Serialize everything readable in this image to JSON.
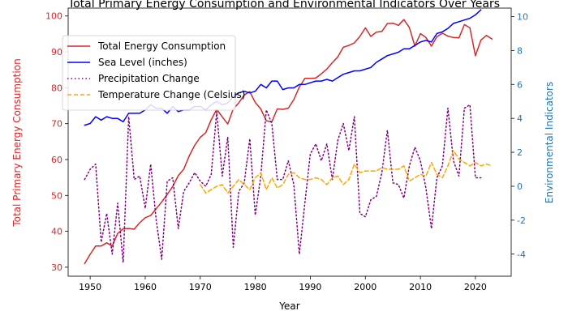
{
  "chart_data": {
    "type": "line",
    "title": "Total Primary Energy Consumption and Environmental Indicators Over Years",
    "xlabel": "Year",
    "ylabel_left": "Total Primary Energy Consumption",
    "ylabel_right": "Environmental Indicators",
    "xlim": [
      1946,
      2026.5
    ],
    "ylim_left": [
      27.5,
      102.2
    ],
    "ylim_right": [
      -5.3,
      10.5
    ],
    "x_ticks": [
      1950,
      1960,
      1970,
      1980,
      1990,
      2000,
      2010,
      2020
    ],
    "y_left_ticks": [
      30,
      40,
      50,
      60,
      70,
      80,
      90,
      100
    ],
    "y_right_ticks": [
      -4,
      -2,
      0,
      2,
      4,
      6,
      8,
      10
    ],
    "legend_position": "upper-left",
    "grid": false,
    "colors": {
      "left_axis": "#d62728",
      "right_axis": "#1f77b4"
    },
    "series": [
      {
        "name": "Total Energy Consumption",
        "axis": "left",
        "color": "#d62728",
        "style": "solid",
        "x": [
          1949,
          1950,
          1951,
          1952,
          1953,
          1954,
          1955,
          1956,
          1957,
          1958,
          1959,
          1960,
          1961,
          1962,
          1963,
          1964,
          1965,
          1966,
          1967,
          1968,
          1969,
          1970,
          1971,
          1972,
          1973,
          1974,
          1975,
          1976,
          1977,
          1978,
          1979,
          1980,
          1981,
          1982,
          1983,
          1984,
          1985,
          1986,
          1987,
          1988,
          1989,
          1990,
          1991,
          1992,
          1993,
          1994,
          1995,
          1996,
          1997,
          1998,
          1999,
          2000,
          2001,
          2002,
          2003,
          2004,
          2005,
          2006,
          2007,
          2008,
          2009,
          2010,
          2011,
          2012,
          2013,
          2014,
          2015,
          2016,
          2017,
          2018,
          2019,
          2020,
          2021,
          2022,
          2023
        ],
        "values": [
          31.0,
          33.6,
          35.9,
          35.9,
          36.8,
          35.9,
          39.4,
          40.7,
          40.8,
          40.6,
          42.4,
          43.8,
          44.4,
          46.3,
          48.2,
          50.3,
          52.5,
          55.5,
          57.3,
          61.0,
          64.0,
          66.2,
          67.5,
          71.1,
          74.0,
          71.9,
          69.9,
          74.1,
          75.8,
          78.0,
          78.9,
          75.9,
          74.1,
          70.8,
          70.5,
          74.1,
          74.0,
          74.3,
          76.7,
          80.2,
          82.6,
          82.6,
          82.7,
          83.9,
          85.2,
          87.0,
          88.6,
          91.3,
          91.8,
          92.5,
          94.3,
          96.7,
          94.3,
          95.5,
          95.7,
          97.9,
          98.0,
          97.4,
          99.0,
          96.8,
          91.6,
          95.1,
          94.0,
          91.6,
          94.2,
          95.2,
          94.4,
          94.0,
          93.9,
          97.6,
          96.7,
          88.9,
          93.3,
          94.6,
          93.6
        ]
      },
      {
        "name": "Sea Level (inches)",
        "axis": "right",
        "color": "#0000ff",
        "style": "solid",
        "x": [
          1949,
          1950,
          1951,
          1952,
          1953,
          1954,
          1955,
          1956,
          1957,
          1958,
          1959,
          1960,
          1961,
          1962,
          1963,
          1964,
          1965,
          1966,
          1967,
          1968,
          1969,
          1970,
          1971,
          1972,
          1973,
          1974,
          1975,
          1976,
          1977,
          1978,
          1979,
          1980,
          1981,
          1982,
          1983,
          1984,
          1985,
          1986,
          1987,
          1988,
          1989,
          1990,
          1991,
          1992,
          1993,
          1994,
          1995,
          1996,
          1997,
          1998,
          1999,
          2000,
          2001,
          2002,
          2003,
          2004,
          2005,
          2006,
          2007,
          2008,
          2009,
          2010,
          2011,
          2012,
          2013,
          2014,
          2015,
          2016,
          2017,
          2018,
          2019,
          2020,
          2021
        ],
        "values": [
          3.6,
          3.7,
          4.1,
          3.9,
          4.1,
          4.0,
          4.0,
          3.8,
          4.3,
          4.3,
          4.3,
          4.5,
          4.8,
          4.6,
          4.6,
          4.3,
          4.7,
          4.4,
          4.5,
          4.5,
          4.7,
          4.7,
          4.5,
          4.8,
          5.0,
          4.8,
          4.9,
          5.3,
          5.5,
          5.6,
          5.5,
          5.6,
          6.0,
          5.8,
          6.2,
          6.2,
          5.7,
          5.8,
          5.8,
          6.0,
          6.0,
          6.1,
          6.2,
          6.2,
          6.3,
          6.2,
          6.4,
          6.6,
          6.7,
          6.8,
          6.8,
          6.9,
          7.0,
          7.3,
          7.5,
          7.7,
          7.8,
          7.9,
          8.1,
          8.1,
          8.3,
          8.5,
          8.6,
          8.5,
          9.0,
          9.1,
          9.3,
          9.6,
          9.7,
          9.8,
          9.9,
          10.1,
          10.4
        ]
      },
      {
        "name": "Precipitation Change",
        "axis": "right",
        "color": "#800080",
        "style": "dotted",
        "x": [
          1949,
          1950,
          1951,
          1952,
          1953,
          1954,
          1955,
          1956,
          1957,
          1958,
          1959,
          1960,
          1961,
          1962,
          1963,
          1964,
          1965,
          1966,
          1967,
          1968,
          1969,
          1970,
          1971,
          1972,
          1973,
          1974,
          1975,
          1976,
          1977,
          1978,
          1979,
          1980,
          1981,
          1982,
          1983,
          1984,
          1985,
          1986,
          1987,
          1988,
          1989,
          1990,
          1991,
          1992,
          1993,
          1994,
          1995,
          1996,
          1997,
          1998,
          1999,
          2000,
          2001,
          2002,
          2003,
          2004,
          2005,
          2006,
          2007,
          2008,
          2009,
          2010,
          2011,
          2012,
          2013,
          2014,
          2015,
          2016,
          2017,
          2018,
          2019,
          2020,
          2021
        ],
        "values": [
          0.4,
          1.0,
          1.3,
          -3.3,
          -1.6,
          -4.0,
          -1.0,
          -4.5,
          4.1,
          0.4,
          0.6,
          -1.3,
          1.3,
          -2.0,
          -4.3,
          0.3,
          0.5,
          -2.5,
          -0.3,
          0.2,
          0.8,
          0.3,
          0.0,
          0.7,
          4.4,
          0.6,
          2.9,
          -3.6,
          -0.3,
          0.2,
          2.8,
          -1.7,
          0.6,
          4.5,
          3.7,
          0.4,
          0.4,
          1.5,
          0.1,
          -4.0,
          -1.0,
          1.9,
          2.5,
          1.5,
          2.5,
          0.4,
          2.7,
          3.7,
          2.1,
          4.1,
          -1.6,
          -1.8,
          -0.8,
          -0.6,
          0.8,
          3.3,
          0.2,
          0.1,
          -0.7,
          1.2,
          2.3,
          1.5,
          -0.1,
          -2.5,
          0.5,
          1.2,
          4.6,
          1.5,
          0.6,
          4.6,
          4.8,
          0.5,
          0.5
        ]
      },
      {
        "name": "Temperature Change (Celsius)",
        "axis": "right",
        "color": "#ffa500",
        "style": "dashed",
        "x": [
          1970,
          1971,
          1972,
          1973,
          1974,
          1975,
          1976,
          1977,
          1978,
          1979,
          1980,
          1981,
          1982,
          1983,
          1984,
          1985,
          1986,
          1987,
          1988,
          1989,
          1990,
          1991,
          1992,
          1993,
          1994,
          1995,
          1996,
          1997,
          1998,
          1999,
          2000,
          2001,
          2002,
          2003,
          2004,
          2005,
          2006,
          2007,
          2008,
          2009,
          2010,
          2011,
          2012,
          2013,
          2014,
          2015,
          2016,
          2017,
          2018,
          2019,
          2020,
          2021,
          2022,
          2023
        ],
        "values": [
          0.1,
          -0.4,
          -0.2,
          0.0,
          0.1,
          -0.4,
          0.0,
          0.4,
          0.1,
          -0.2,
          0.5,
          0.8,
          -0.2,
          0.5,
          -0.1,
          0.1,
          0.7,
          0.8,
          0.5,
          0.4,
          0.4,
          0.5,
          0.4,
          0.1,
          0.5,
          0.6,
          0.1,
          0.4,
          1.3,
          0.8,
          0.9,
          0.9,
          0.9,
          1.1,
          1.0,
          1.0,
          1.0,
          1.2,
          0.3,
          0.5,
          0.7,
          0.6,
          1.4,
          0.7,
          0.5,
          1.2,
          2.1,
          1.6,
          1.4,
          1.2,
          1.4,
          1.2,
          1.3,
          1.2
        ]
      }
    ]
  }
}
